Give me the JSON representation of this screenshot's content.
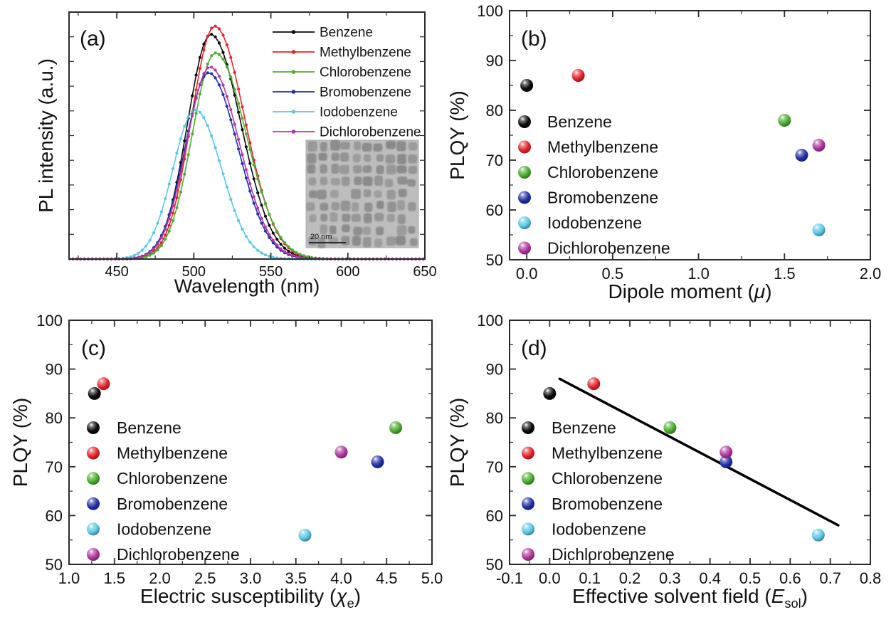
{
  "figure": {
    "background": "#ffffff",
    "frame_color": "#2b2b2b",
    "text_color": "#111111"
  },
  "solvents": [
    {
      "name": "Benzene",
      "color": "#0a0a0a"
    },
    {
      "name": "Methylbenzene",
      "color": "#e8232a"
    },
    {
      "name": "Chlorobenzene",
      "color": "#4bae2f"
    },
    {
      "name": "Bromobenzene",
      "color": "#2231a7"
    },
    {
      "name": "Iodobenzene",
      "color": "#5ac8e8"
    },
    {
      "name": "Dichlorobenzene",
      "color": "#b437a0"
    }
  ],
  "chart_data": [
    {
      "id": "a",
      "type": "line",
      "panel_label": "(a)",
      "xlabel": "Wavelength (nm)",
      "ylabel": "PL intensity (a.u.)",
      "xlim": [
        419,
        650
      ],
      "ylim": [
        0,
        1.06
      ],
      "x_major_ticks": [
        450,
        500,
        550,
        600,
        650
      ],
      "x_tick_labels": [
        "450",
        "500",
        "550",
        "600",
        "650"
      ],
      "x_minor_step": 25,
      "y_axis_labeled": false,
      "y_unlabeled_tick_count": 9,
      "sample_step_nm": 2.5,
      "series": [
        {
          "name": "Benzene",
          "color": "#0a0a0a",
          "peak_nm": 511.0,
          "rel_intensity": 0.965,
          "sigma_left_nm": 15.0,
          "sigma_right_nm": 19.5
        },
        {
          "name": "Methylbenzene",
          "color": "#e8232a",
          "peak_nm": 513.5,
          "rel_intensity": 1.0,
          "sigma_left_nm": 15.0,
          "sigma_right_nm": 19.5
        },
        {
          "name": "Chlorobenzene",
          "color": "#4bae2f",
          "peak_nm": 514.0,
          "rel_intensity": 0.885,
          "sigma_left_nm": 15.0,
          "sigma_right_nm": 20.0
        },
        {
          "name": "Bromobenzene",
          "color": "#2231a7",
          "peak_nm": 509.5,
          "rel_intensity": 0.8,
          "sigma_left_nm": 15.0,
          "sigma_right_nm": 19.0
        },
        {
          "name": "Iodobenzene",
          "color": "#5ac8e8",
          "peak_nm": 501.0,
          "rel_intensity": 0.64,
          "sigma_left_nm": 14.5,
          "sigma_right_nm": 17.0
        },
        {
          "name": "Dichlorobenzene",
          "color": "#b437a0",
          "peak_nm": 510.5,
          "rel_intensity": 0.825,
          "sigma_left_nm": 15.0,
          "sigma_right_nm": 19.0
        }
      ],
      "legend_entries": [
        "Benzene",
        "Methylbenzene",
        "Chlorobenzene",
        "Bromobenzene",
        "Iodobenzene",
        "Dichlorobenzene"
      ],
      "inset": {
        "description": "TEM image of nanocrystals",
        "scale_bar_label": "20 nm"
      }
    },
    {
      "id": "b",
      "type": "scatter",
      "panel_label": "(b)",
      "xlabel_parts": [
        {
          "t": "Dipole moment ("
        },
        {
          "t": "μ",
          "italic": true
        },
        {
          "t": ")"
        }
      ],
      "ylabel": "PLQY (%)",
      "xlim": [
        -0.1,
        2.0
      ],
      "ylim": [
        50,
        100
      ],
      "x_major_ticks": [
        0.0,
        0.5,
        1.0,
        1.5,
        2.0
      ],
      "x_tick_labels": [
        "0.0",
        "0.5",
        "1.0",
        "1.5",
        "2.0"
      ],
      "x_minor_step": 0.25,
      "y_major_ticks": [
        50,
        60,
        70,
        80,
        90,
        100
      ],
      "y_tick_labels": [
        "50",
        "60",
        "70",
        "80",
        "90",
        "100"
      ],
      "y_minor_step": 5,
      "points": [
        {
          "name": "Benzene",
          "x": 0.0,
          "y": 85
        },
        {
          "name": "Methylbenzene",
          "x": 0.3,
          "y": 87
        },
        {
          "name": "Chlorobenzene",
          "x": 1.5,
          "y": 78
        },
        {
          "name": "Bromobenzene",
          "x": 1.6,
          "y": 71
        },
        {
          "name": "Iodobenzene",
          "x": 1.7,
          "y": 56
        },
        {
          "name": "Dichlorobenzene",
          "x": 1.7,
          "y": 73
        }
      ],
      "legend_entries": [
        "Benzene",
        "Methylbenzene",
        "Chlorobenzene",
        "Bromobenzene",
        "Iodobenzene",
        "Dichlorobenzene"
      ]
    },
    {
      "id": "c",
      "type": "scatter",
      "panel_label": "(c)",
      "xlabel_parts": [
        {
          "t": "Electric susceptibility ("
        },
        {
          "t": "χ",
          "italic": true
        },
        {
          "t": "e",
          "sub": true
        },
        {
          "t": ")"
        }
      ],
      "ylabel": "PLQY (%)",
      "xlim": [
        1.0,
        5.0
      ],
      "ylim": [
        50,
        100
      ],
      "x_major_ticks": [
        1.0,
        1.5,
        2.0,
        2.5,
        3.0,
        3.5,
        4.0,
        4.5,
        5.0
      ],
      "x_tick_labels": [
        "1.0",
        "1.5",
        "2.0",
        "2.5",
        "3.0",
        "3.5",
        "4.0",
        "4.5",
        "5.0"
      ],
      "x_minor_step": 0.25,
      "y_major_ticks": [
        50,
        60,
        70,
        80,
        90,
        100
      ],
      "y_tick_labels": [
        "50",
        "60",
        "70",
        "80",
        "90",
        "100"
      ],
      "y_minor_step": 5,
      "points": [
        {
          "name": "Benzene",
          "x": 1.28,
          "y": 85
        },
        {
          "name": "Methylbenzene",
          "x": 1.38,
          "y": 87
        },
        {
          "name": "Chlorobenzene",
          "x": 4.6,
          "y": 78
        },
        {
          "name": "Bromobenzene",
          "x": 4.4,
          "y": 71
        },
        {
          "name": "Iodobenzene",
          "x": 3.6,
          "y": 56
        },
        {
          "name": "Dichlorobenzene",
          "x": 4.0,
          "y": 73
        }
      ],
      "legend_entries": [
        "Benzene",
        "Methylbenzene",
        "Chlorobenzene",
        "Bromobenzene",
        "Iodobenzene",
        "Dichlorobenzene"
      ]
    },
    {
      "id": "d",
      "type": "scatter",
      "panel_label": "(d)",
      "xlabel_parts": [
        {
          "t": "Effective solvent field ("
        },
        {
          "t": "E",
          "italic": true
        },
        {
          "t": "sol",
          "sub": true
        },
        {
          "t": ")"
        }
      ],
      "ylabel": "PLQY (%)",
      "xlim": [
        -0.1,
        0.8
      ],
      "ylim": [
        50,
        100
      ],
      "x_major_ticks": [
        -0.1,
        0.0,
        0.1,
        0.2,
        0.3,
        0.4,
        0.5,
        0.6,
        0.7,
        0.8
      ],
      "x_tick_labels": [
        "-0.1",
        "0.0",
        "0.1",
        "0.2",
        "0.3",
        "0.4",
        "0.5",
        "0.6",
        "0.7",
        "0.8"
      ],
      "x_minor_step": 0.05,
      "y_major_ticks": [
        50,
        60,
        70,
        80,
        90,
        100
      ],
      "y_tick_labels": [
        "50",
        "60",
        "70",
        "80",
        "90",
        "100"
      ],
      "y_minor_step": 5,
      "points": [
        {
          "name": "Benzene",
          "x": 0.0,
          "y": 85
        },
        {
          "name": "Methylbenzene",
          "x": 0.11,
          "y": 87
        },
        {
          "name": "Chlorobenzene",
          "x": 0.3,
          "y": 78
        },
        {
          "name": "Bromobenzene",
          "x": 0.44,
          "y": 71
        },
        {
          "name": "Iodobenzene",
          "x": 0.67,
          "y": 56
        },
        {
          "name": "Dichlorobenzene",
          "x": 0.44,
          "y": 73
        }
      ],
      "fit_line": {
        "x1": 0.025,
        "y1": 88,
        "x2": 0.72,
        "y2": 58,
        "color": "#000000",
        "width": 3.5
      },
      "legend_entries": [
        "Benzene",
        "Methylbenzene",
        "Chlorobenzene",
        "Bromobenzene",
        "Iodobenzene",
        "Dichlorobenzene"
      ]
    }
  ]
}
